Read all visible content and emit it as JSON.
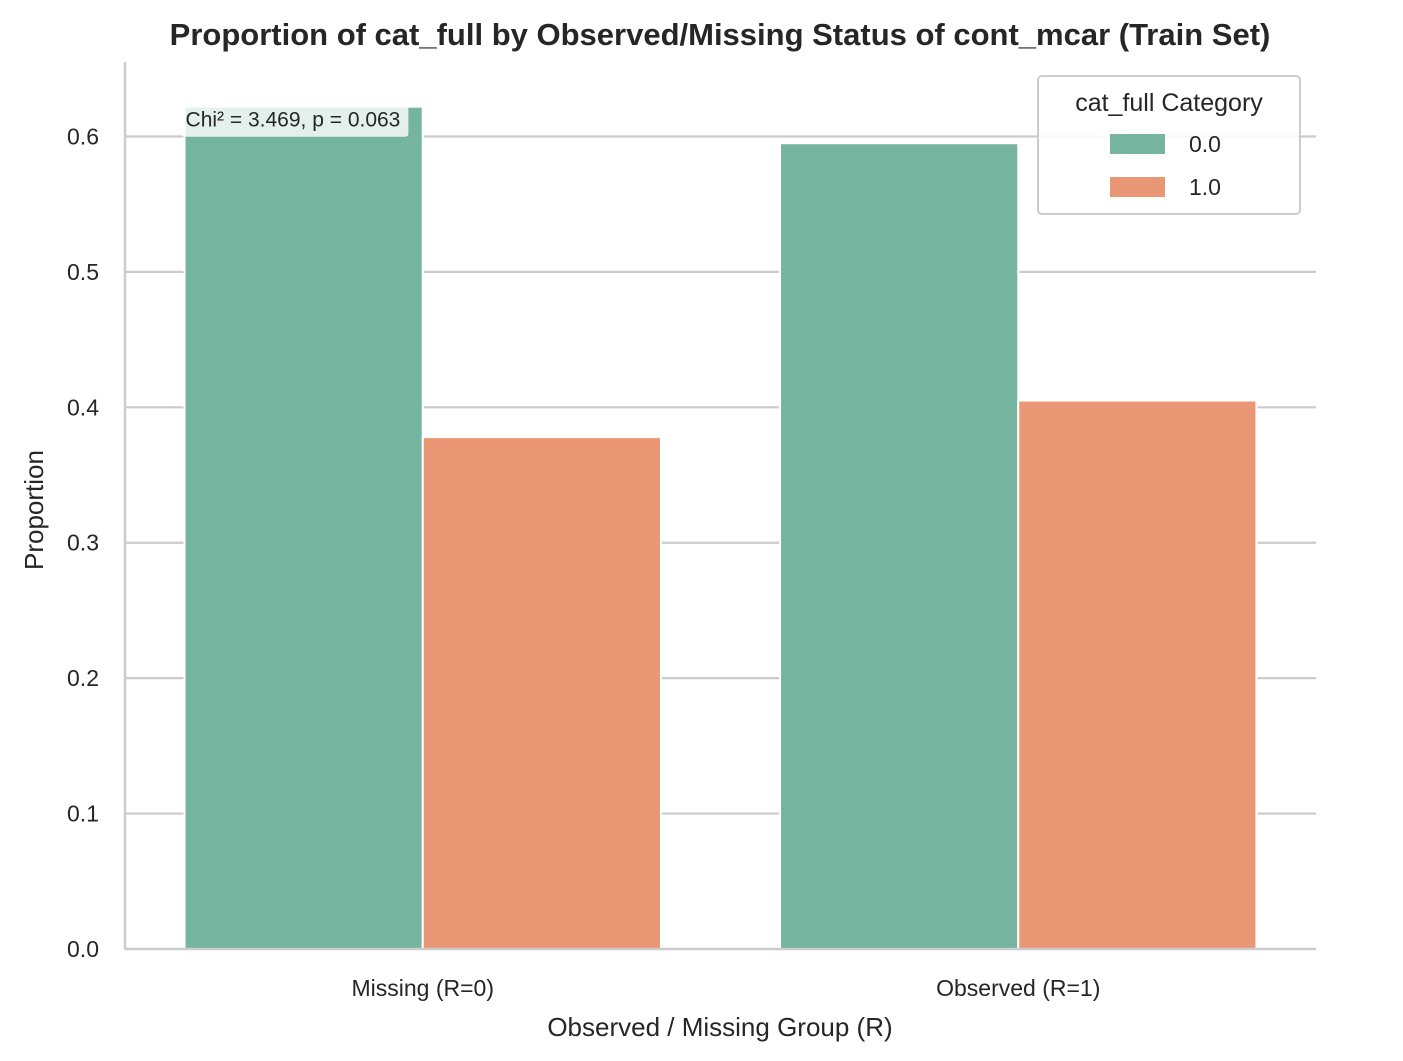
{
  "chart_data": {
    "type": "bar",
    "title": "Proportion of cat_full by Observed/Missing Status of cont_mcar (Train Set)",
    "xlabel": "Observed / Missing Group (R)",
    "ylabel": "Proportion",
    "categories": [
      "Missing (R=0)",
      "Observed (R=1)"
    ],
    "series": [
      {
        "name": "0.0",
        "values": [
          0.622,
          0.595
        ],
        "color": "#75b5a0"
      },
      {
        "name": "1.0",
        "values": [
          0.378,
          0.405
        ],
        "color": "#e99775"
      }
    ],
    "ylim": [
      0,
      0.655
    ],
    "yticks": [
      0.0,
      0.1,
      0.2,
      0.3,
      0.4,
      0.5,
      0.6
    ],
    "ytick_labels": [
      "0.0",
      "0.1",
      "0.2",
      "0.3",
      "0.4",
      "0.5",
      "0.6"
    ],
    "grid": "horizontal",
    "legend": {
      "title": "cat_full Category",
      "placement": "top-right"
    },
    "annotation": {
      "text": "Chi² = 3.469, p = 0.063"
    }
  }
}
